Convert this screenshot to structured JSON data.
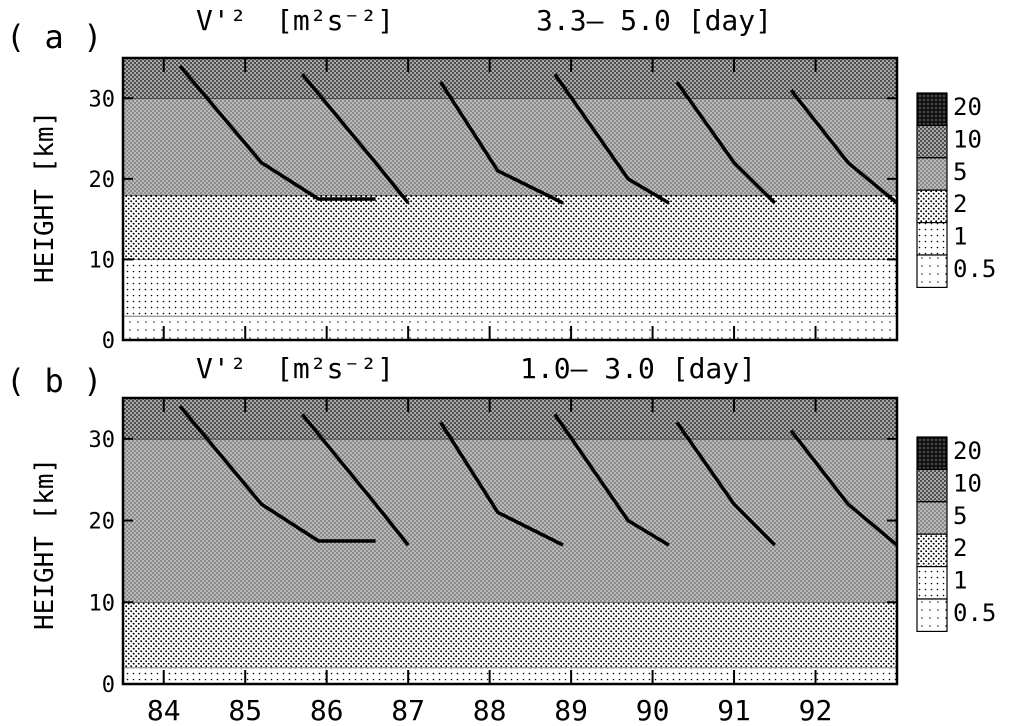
{
  "chart_data": [
    {
      "type": "heatmap",
      "panel_label": "( a )",
      "title_var": "V'²",
      "title_units": "[m²s⁻²]",
      "title_range": "3.3– 5.0 [day]",
      "ylabel": "HEIGHT [km]",
      "xlim": [
        83.5,
        93.0
      ],
      "ylim": [
        0,
        35
      ],
      "yticks": [
        "0",
        "10",
        "20",
        "30"
      ],
      "legend": {
        "placement": "right",
        "levels": [
          "20",
          "10",
          "5",
          "2",
          "1",
          "0.5"
        ]
      },
      "contour_bands": [
        {
          "level": "0.5",
          "y_top_km": 3
        },
        {
          "level": "1",
          "y_top_km": 10
        },
        {
          "level": "2",
          "y_top_km": 18
        },
        {
          "level": "5",
          "y_top_km": 30
        },
        {
          "level": "10",
          "y_top_km": 35
        }
      ],
      "tropopause_lines": [
        [
          [
            84.2,
            34
          ],
          [
            85.2,
            22
          ],
          [
            85.9,
            17.5
          ],
          [
            86.6,
            17.5
          ]
        ],
        [
          [
            85.7,
            33
          ],
          [
            86.6,
            22
          ],
          [
            87.0,
            17
          ]
        ],
        [
          [
            87.4,
            32
          ],
          [
            88.1,
            21
          ],
          [
            88.9,
            17
          ]
        ],
        [
          [
            88.8,
            33
          ],
          [
            89.7,
            20
          ],
          [
            90.2,
            17
          ]
        ],
        [
          [
            90.3,
            32
          ],
          [
            91.0,
            22
          ],
          [
            91.5,
            17
          ]
        ],
        [
          [
            91.7,
            31
          ],
          [
            92.4,
            22
          ],
          [
            93.0,
            17
          ]
        ]
      ]
    },
    {
      "type": "heatmap",
      "panel_label": "( b )",
      "title_var": "V'²",
      "title_units": "[m²s⁻²]",
      "title_range": "1.0– 3.0 [day]",
      "ylabel": "HEIGHT [km]",
      "xlabel_ticks": [
        "84",
        "85",
        "86",
        "87",
        "88",
        "89",
        "90",
        "91",
        "92"
      ],
      "xlim": [
        83.5,
        93.0
      ],
      "ylim": [
        0,
        35
      ],
      "yticks": [
        "0",
        "10",
        "20",
        "30"
      ],
      "legend": {
        "placement": "right",
        "levels": [
          "20",
          "10",
          "5",
          "2",
          "1",
          "0.5"
        ]
      },
      "contour_bands": [
        {
          "level": "1",
          "y_top_km": 2
        },
        {
          "level": "2",
          "y_top_km": 10
        },
        {
          "level": "5",
          "y_top_km": 30
        },
        {
          "level": "10",
          "y_top_km": 35
        }
      ],
      "tropopause_lines": [
        [
          [
            84.2,
            34
          ],
          [
            85.2,
            22
          ],
          [
            85.9,
            17.5
          ],
          [
            86.6,
            17.5
          ]
        ],
        [
          [
            85.7,
            33
          ],
          [
            86.6,
            22
          ],
          [
            87.0,
            17
          ]
        ],
        [
          [
            87.4,
            32
          ],
          [
            88.1,
            21
          ],
          [
            88.9,
            17
          ]
        ],
        [
          [
            88.8,
            33
          ],
          [
            89.7,
            20
          ],
          [
            90.2,
            17
          ]
        ],
        [
          [
            90.3,
            32
          ],
          [
            91.0,
            22
          ],
          [
            91.5,
            17
          ]
        ],
        [
          [
            91.7,
            31
          ],
          [
            92.4,
            22
          ],
          [
            93.0,
            17
          ]
        ]
      ]
    }
  ]
}
